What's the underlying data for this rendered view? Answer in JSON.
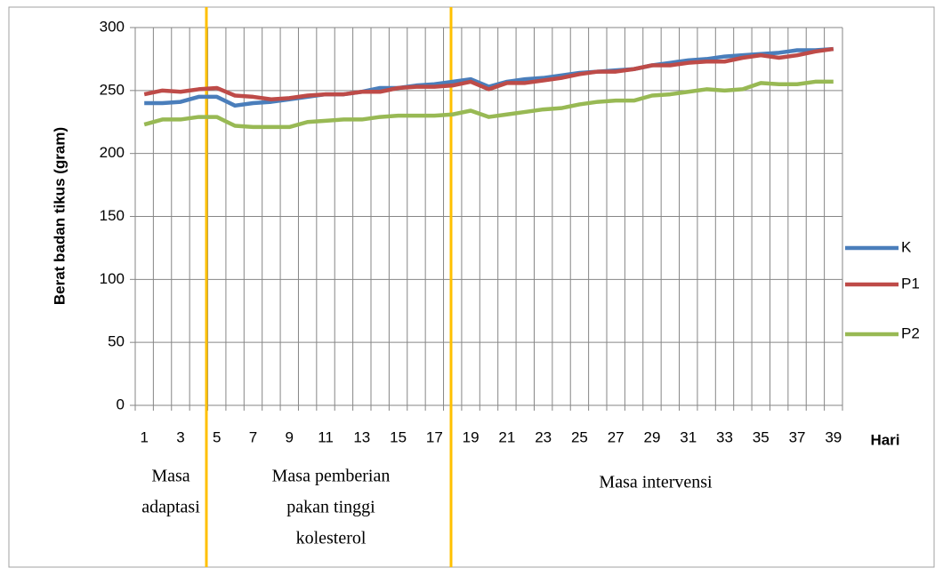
{
  "chart_data": {
    "type": "line",
    "y_label": "Berat badan tikus (gram)",
    "x_label": "Hari",
    "categories": [
      1,
      null,
      3,
      null,
      5,
      null,
      7,
      null,
      9,
      null,
      11,
      null,
      13,
      null,
      15,
      null,
      17,
      null,
      19,
      null,
      21,
      null,
      23,
      null,
      25,
      null,
      27,
      null,
      29,
      null,
      31,
      null,
      33,
      null,
      35,
      null,
      37,
      null,
      39
    ],
    "series": [
      {
        "name": "K",
        "color": "#4a7ebb",
        "values": [
          240,
          240,
          241,
          245,
          245,
          238,
          240,
          241,
          243,
          245,
          247,
          247,
          249,
          252,
          252,
          254,
          255,
          257,
          259,
          253,
          257,
          259,
          260,
          262,
          264,
          265,
          266,
          267,
          270,
          272,
          274,
          275,
          277,
          278,
          279,
          280,
          282,
          282,
          283
        ]
      },
      {
        "name": "P1",
        "color": "#be4b48",
        "values": [
          247,
          250,
          249,
          251,
          252,
          246,
          245,
          243,
          244,
          246,
          247,
          247,
          249,
          249,
          252,
          253,
          253,
          254,
          257,
          251,
          256,
          256,
          258,
          260,
          263,
          265,
          265,
          267,
          270,
          270,
          272,
          273,
          273,
          276,
          278,
          276,
          278,
          281,
          283
        ]
      },
      {
        "name": "P2",
        "color": "#98b954",
        "values": [
          223,
          227,
          227,
          229,
          229,
          222,
          221,
          221,
          221,
          225,
          226,
          227,
          227,
          229,
          230,
          230,
          230,
          231,
          234,
          229,
          231,
          233,
          235,
          236,
          239,
          241,
          242,
          242,
          246,
          247,
          249,
          251,
          250,
          251,
          256,
          255,
          255,
          257,
          257
        ]
      }
    ],
    "ylim": [
      0,
      300
    ],
    "yticks": [
      0,
      50,
      100,
      150,
      200,
      250,
      300
    ],
    "grid": true,
    "legend": "right",
    "annotations": [
      {
        "lines": [
          "Masa",
          "adaptasi"
        ]
      },
      {
        "lines": [
          "Masa pemberian",
          "pakan tinggi",
          "kolesterol"
        ]
      },
      {
        "lines": [
          "Masa intervensi"
        ]
      }
    ]
  }
}
